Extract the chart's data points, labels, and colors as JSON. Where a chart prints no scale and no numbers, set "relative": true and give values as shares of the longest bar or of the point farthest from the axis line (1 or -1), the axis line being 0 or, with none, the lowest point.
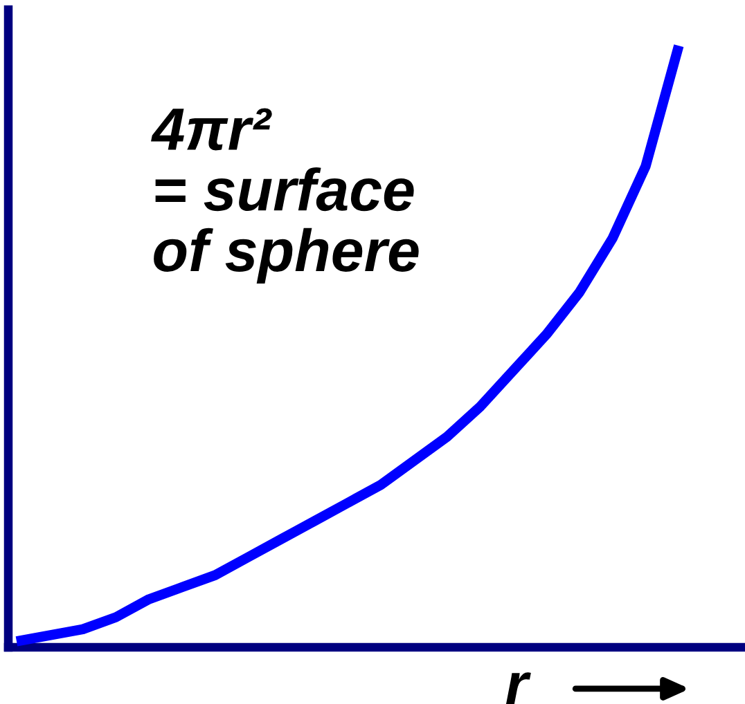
{
  "chart_data": {
    "type": "line",
    "relative": true,
    "xlabel": "r",
    "categories": [
      null,
      null,
      null,
      null,
      null,
      null,
      null,
      null,
      null,
      null,
      null,
      null,
      null,
      null,
      null,
      null,
      null,
      null,
      null,
      null,
      null,
      null,
      null
    ],
    "series": [
      {
        "color": "#0000ff",
        "values": [
          0.01,
          0.02,
          0.03,
          0.05,
          0.08,
          0.1,
          0.12,
          0.15,
          0.18,
          0.21,
          0.24,
          0.27,
          0.31,
          0.35,
          0.4,
          0.46,
          0.52,
          0.59,
          0.68,
          0.8,
          1.0,
          null,
          null
        ]
      }
    ],
    "annotations": [
      "4πr²\n= surface\nof sphere"
    ]
  }
}
